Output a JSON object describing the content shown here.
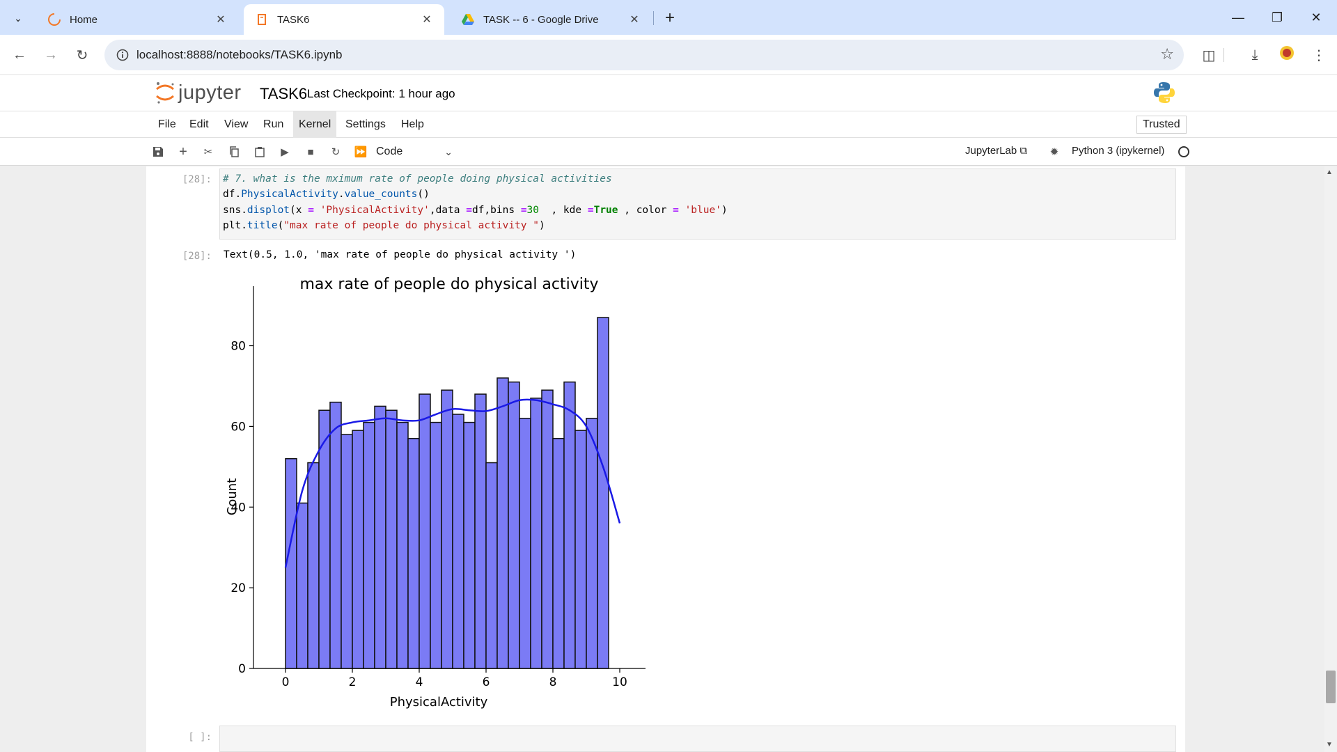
{
  "browser": {
    "tabs": [
      {
        "title": "Home",
        "icon": "jupyter-loading-icon",
        "active": false
      },
      {
        "title": "TASK6",
        "icon": "notebook-icon",
        "active": true
      },
      {
        "title": "TASK -- 6 - Google Drive",
        "icon": "google-drive-icon",
        "active": false
      }
    ],
    "url": "localhost:8888/notebooks/TASK6.ipynb"
  },
  "jupyter": {
    "logo_text": "jupyter",
    "notebook_title": "TASK6",
    "checkpoint": "Last Checkpoint: 1 hour ago",
    "menu": [
      "File",
      "Edit",
      "View",
      "Run",
      "Kernel",
      "Settings",
      "Help"
    ],
    "active_menu": "Kernel",
    "trusted": "Trusted",
    "cell_type": "Code",
    "jupyterlab_link": "JupyterLab",
    "kernel": "Python 3 (ipykernel)"
  },
  "cells": {
    "code_prompt": "[28]:",
    "output_prompt": "[28]:",
    "empty_prompt": "[ ]:",
    "code_lines": [
      "# 7. what is the mximum rate of people doing physical activities",
      "df.PhysicalActivity.value_counts()",
      "sns.displot(x = 'PhysicalActivity',data =df,bins =30  , kde =True , color = 'blue')",
      "plt.title(\"max rate of people do physical activity \")"
    ],
    "output_text": "Text(0.5, 1.0, 'max rate of people do physical activity ')"
  },
  "chart_data": {
    "type": "bar",
    "title": "max rate of people do physical activity",
    "xlabel": "PhysicalActivity",
    "ylabel": "Count",
    "xlim": [
      -0.5,
      10.5
    ],
    "ylim": [
      0,
      92
    ],
    "xticks": [
      0,
      2,
      4,
      6,
      8,
      10
    ],
    "yticks": [
      0,
      20,
      40,
      60,
      80
    ],
    "bin_range": [
      0,
      10
    ],
    "bins": 30,
    "values": [
      52,
      41,
      51,
      64,
      66,
      58,
      59,
      61,
      65,
      64,
      61,
      57,
      68,
      61,
      69,
      63,
      61,
      68,
      51,
      72,
      71,
      62,
      67,
      69,
      57,
      71,
      59,
      62,
      87,
      0
    ],
    "bar_color": "#7b7bf5",
    "kde": {
      "x": [
        0,
        0.5,
        1,
        1.5,
        2,
        2.5,
        3,
        3.5,
        4,
        4.5,
        5,
        5.5,
        6,
        6.5,
        7,
        7.5,
        8,
        8.5,
        9,
        9.5,
        10
      ],
      "y": [
        25,
        44,
        54,
        59.5,
        61,
        61.5,
        62,
        61.5,
        61.5,
        63,
        64.3,
        64,
        63.8,
        65,
        66.5,
        66.5,
        65.5,
        64,
        60,
        50,
        36
      ],
      "color": "#1a1ae6"
    },
    "grid": false,
    "legend": "none"
  }
}
